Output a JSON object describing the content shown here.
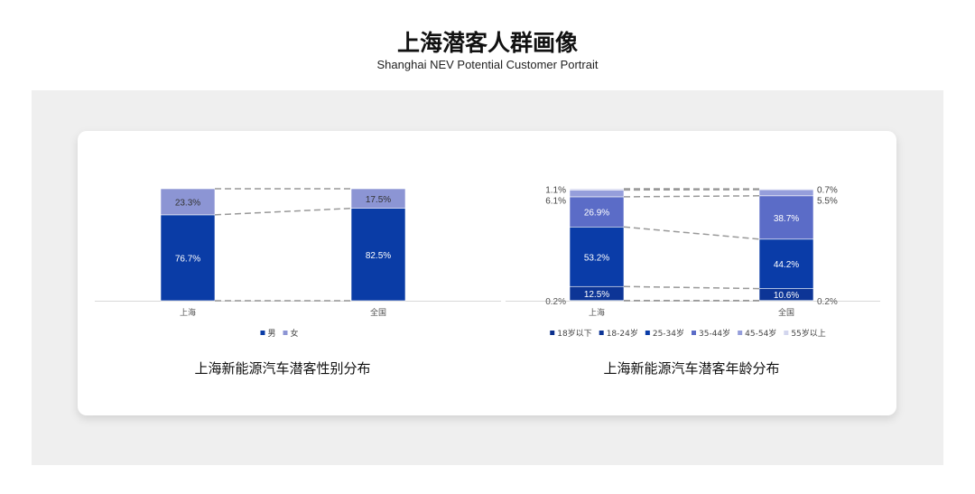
{
  "header": {
    "title": "上海潜客人群画像",
    "subtitle": "Shanghai NEV Potential Customer Portrait"
  },
  "chart_data": [
    {
      "type": "bar",
      "stacked": true,
      "title": "上海新能源汽车潜客性别分布",
      "categories": [
        "上海",
        "全国"
      ],
      "ylim": [
        0,
        100
      ],
      "legend": "bottom",
      "series": [
        {
          "name": "男",
          "values": [
            76.7,
            82.5
          ],
          "color": "#0a3ca6",
          "label_color": "#ffffff"
        },
        {
          "name": "女",
          "values": [
            23.3,
            17.5
          ],
          "color": "#8c95d4",
          "label_color": "#333333"
        }
      ]
    },
    {
      "type": "bar",
      "stacked": true,
      "title": "上海新能源汽车潜客年龄分布",
      "categories": [
        "上海",
        "全国"
      ],
      "ylim": [
        0,
        100
      ],
      "legend": "bottom",
      "series": [
        {
          "name": "18岁以下",
          "values": [
            0.2,
            0.2
          ],
          "color": "#0b2f8c",
          "label_color": "#555555"
        },
        {
          "name": "18-24岁",
          "values": [
            12.5,
            10.6
          ],
          "color": "#0d3596",
          "label_color": "#ffffff"
        },
        {
          "name": "25-34岁",
          "values": [
            53.2,
            44.2
          ],
          "color": "#0a3ca8",
          "label_color": "#ffffff"
        },
        {
          "name": "35-44岁",
          "values": [
            26.9,
            38.7
          ],
          "color": "#5b6cc7",
          "label_color": "#ffffff"
        },
        {
          "name": "45-54岁",
          "values": [
            6.1,
            5.5
          ],
          "color": "#959edb",
          "label_color": "#444444"
        },
        {
          "name": "55岁以上",
          "values": [
            1.1,
            0.7
          ],
          "color": "#d3d6ee",
          "label_color": "#444444"
        }
      ]
    }
  ]
}
